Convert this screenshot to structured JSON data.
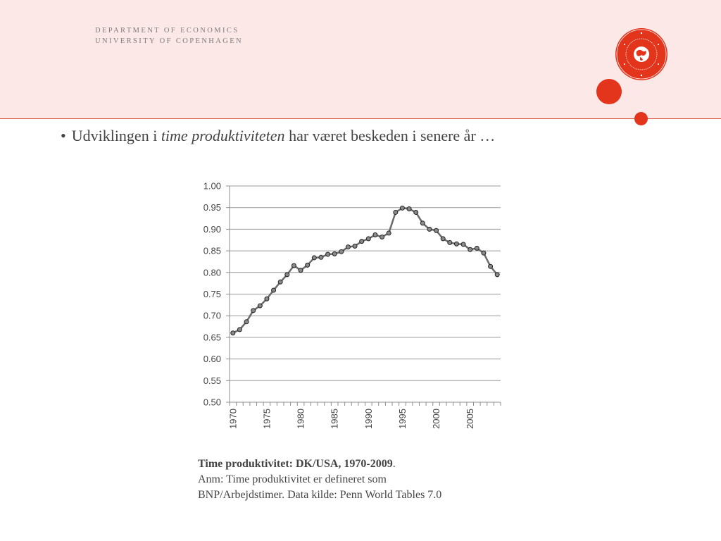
{
  "header": {
    "dept_line1": "DEPARTMENT OF ECONOMICS",
    "dept_line2": "UNIVERSITY OF COPENHAGEN",
    "accent_color": "#e3341c",
    "band_color": "#fce8e6"
  },
  "slide": {
    "bullet": "•",
    "text_before": "Udviklingen i ",
    "text_italic": "time produktiviteten",
    "text_after": " har været beskeden i senere år …"
  },
  "caption": {
    "title": "Time produktivitet: DK/USA, 1970-2009",
    "title_suffix": ".",
    "line2": "Anm: Time produktivitet er defineret som",
    "line3": "BNP/Arbejdstimer. Data kilde: Penn World Tables 7.0"
  },
  "chart_data": {
    "type": "line",
    "title": "",
    "xlabel": "",
    "ylabel": "",
    "ylim": [
      0.5,
      1.0
    ],
    "yticks": [
      "0.50",
      "0.55",
      "0.60",
      "0.65",
      "0.70",
      "0.75",
      "0.80",
      "0.85",
      "0.90",
      "0.95",
      "1.00"
    ],
    "xticks": [
      "1970",
      "1975",
      "1980",
      "1985",
      "1990",
      "1995",
      "2000",
      "2005"
    ],
    "grid": true,
    "legend": "none",
    "series": [
      {
        "x": [
          1970,
          1971,
          1972,
          1973,
          1974,
          1975,
          1976,
          1977,
          1978,
          1979,
          1980,
          1981,
          1982,
          1983,
          1984,
          1985,
          1986,
          1987,
          1988,
          1989,
          1990,
          1991,
          1992,
          1993,
          1994,
          1995,
          1996,
          1997,
          1998,
          1999,
          2000,
          2001,
          2002,
          2003,
          2004,
          2005,
          2006,
          2007,
          2008,
          2009
        ],
        "values": [
          0.66,
          0.668,
          0.686,
          0.712,
          0.723,
          0.739,
          0.759,
          0.778,
          0.795,
          0.816,
          0.805,
          0.817,
          0.834,
          0.835,
          0.842,
          0.843,
          0.848,
          0.859,
          0.861,
          0.872,
          0.878,
          0.887,
          0.882,
          0.891,
          0.939,
          0.949,
          0.947,
          0.939,
          0.914,
          0.9,
          0.897,
          0.878,
          0.869,
          0.866,
          0.865,
          0.853,
          0.856,
          0.845,
          0.814,
          0.795
        ]
      }
    ]
  }
}
